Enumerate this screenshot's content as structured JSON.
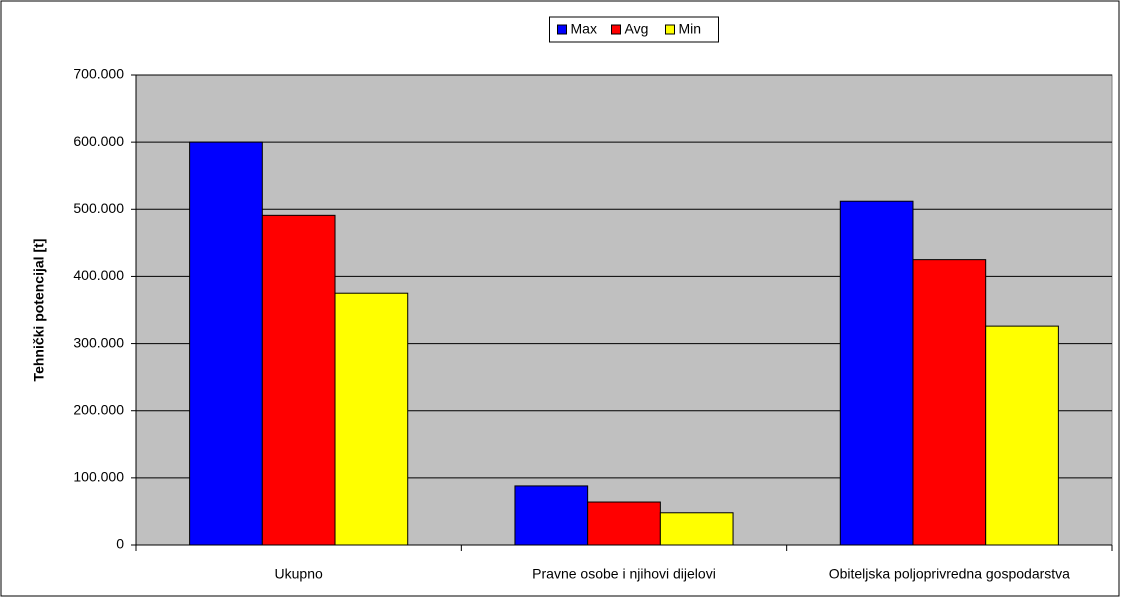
{
  "chart_data": {
    "type": "bar",
    "y_label": "Tehnički potencijal [t]",
    "categories": [
      "Ukupno",
      "Pravne osobe i njihovi dijelovi",
      "Obiteljska poljoprivredna gospodarstva"
    ],
    "series": [
      {
        "name": "Max",
        "color": "#0000ff",
        "values": [
          600000,
          88000,
          512000
        ]
      },
      {
        "name": "Avg",
        "color": "#ff0000",
        "values": [
          491000,
          64000,
          425000
        ]
      },
      {
        "name": "Min",
        "color": "#ffff00",
        "values": [
          375000,
          48000,
          326000
        ]
      }
    ],
    "ylim": [
      0,
      700000
    ],
    "yticks": [
      0,
      {
        "value": 100000,
        "label": "100.000"
      },
      {
        "value": 200000,
        "label": "200.000"
      },
      {
        "value": 300000,
        "label": "300.000"
      },
      {
        "value": 400000,
        "label": "400.000"
      },
      {
        "value": 500000,
        "label": "500.000"
      },
      {
        "value": 600000,
        "label": "600.000"
      },
      {
        "value": 700000,
        "label": "700.000"
      }
    ],
    "grid": true,
    "legend": "top",
    "plot_background": "#c0c0c0"
  }
}
